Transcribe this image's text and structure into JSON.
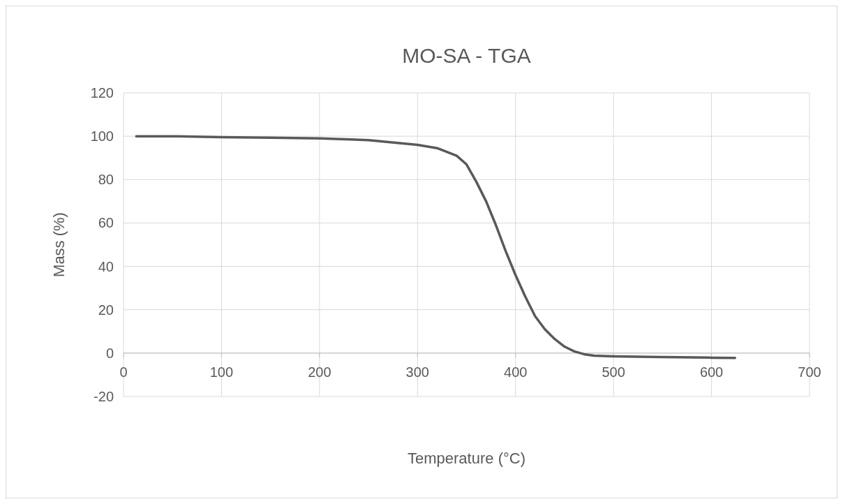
{
  "chart_data": {
    "type": "line",
    "title": "MO-SA - TGA",
    "xlabel": "Temperature (°C)",
    "ylabel": "Mass (%)",
    "xlim": [
      0,
      700
    ],
    "xticks": [
      0,
      100,
      200,
      300,
      400,
      500,
      600,
      700
    ],
    "ylim": [
      -20,
      120
    ],
    "yticks": [
      -20,
      0,
      20,
      40,
      60,
      80,
      100,
      120
    ],
    "grid": true,
    "marker": "none",
    "line_style": "solid",
    "series": [
      {
        "color": "#595959",
        "x": [
          13,
          50,
          100,
          150,
          200,
          250,
          300,
          320,
          340,
          350,
          360,
          370,
          380,
          390,
          400,
          410,
          420,
          430,
          440,
          450,
          460,
          470,
          480,
          500,
          550,
          600,
          624
        ],
        "values": [
          100,
          100,
          99.6,
          99.3,
          99,
          98.2,
          96,
          94.5,
          91,
          87,
          79,
          70,
          59,
          47,
          36,
          26,
          17,
          11,
          6.5,
          3,
          0.8,
          -0.5,
          -1.2,
          -1.5,
          -1.8,
          -2.1,
          -2.2
        ]
      }
    ]
  }
}
